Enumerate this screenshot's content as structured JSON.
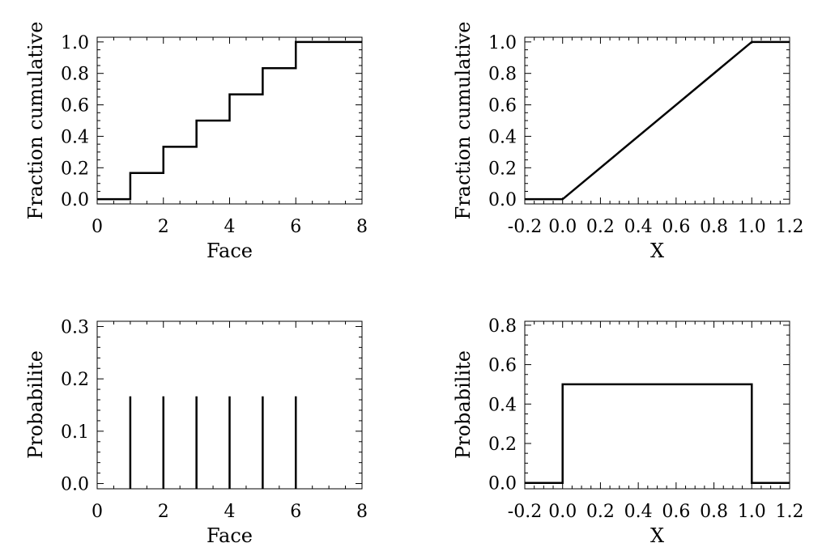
{
  "chart_data": [
    {
      "type": "line",
      "step": true,
      "xlabel": "Face",
      "ylabel": "Fraction cumulative",
      "xlim": [
        0,
        8
      ],
      "ylim": [
        -0.03,
        1.03
      ],
      "x_ticks": [
        0,
        2,
        4,
        6,
        8
      ],
      "x_tick_labels": [
        "0",
        "2",
        "4",
        "6",
        "8"
      ],
      "x_minor_step": 0.5,
      "y_ticks": [
        0.0,
        0.2,
        0.4,
        0.6,
        0.8,
        1.0
      ],
      "y_tick_labels": [
        "0.0",
        "0.2",
        "0.4",
        "0.6",
        "0.8",
        "1.0"
      ],
      "y_minor_step": 0.05,
      "series": [
        {
          "x": [
            0,
            1,
            1,
            2,
            2,
            3,
            3,
            4,
            4,
            5,
            5,
            6,
            6,
            8
          ],
          "y": [
            0,
            0,
            0.1667,
            0.1667,
            0.3333,
            0.3333,
            0.5,
            0.5,
            0.6667,
            0.6667,
            0.8333,
            0.8333,
            1.0,
            1.0
          ]
        }
      ]
    },
    {
      "type": "line",
      "xlabel": "X",
      "ylabel": "Fraction cumulative",
      "xlim": [
        -0.2,
        1.2
      ],
      "ylim": [
        -0.03,
        1.03
      ],
      "x_ticks": [
        -0.2,
        0.0,
        0.2,
        0.4,
        0.6,
        0.8,
        1.0,
        1.2
      ],
      "x_tick_labels": [
        "-0.2",
        "0.0",
        "0.2",
        "0.4",
        "0.6",
        "0.8",
        "1.0",
        "1.2"
      ],
      "x_minor_step": 0.05,
      "y_ticks": [
        0.0,
        0.2,
        0.4,
        0.6,
        0.8,
        1.0
      ],
      "y_tick_labels": [
        "0.0",
        "0.2",
        "0.4",
        "0.6",
        "0.8",
        "1.0"
      ],
      "y_minor_step": 0.05,
      "series": [
        {
          "x": [
            -0.2,
            0.0,
            1.0,
            1.2
          ],
          "y": [
            0.0,
            0.0,
            1.0,
            1.0
          ]
        }
      ]
    },
    {
      "type": "bar",
      "style": "stem",
      "xlabel": "Face",
      "ylabel": "Probabilite",
      "xlim": [
        0,
        8
      ],
      "ylim": [
        -0.01,
        0.31
      ],
      "x_ticks": [
        0,
        2,
        4,
        6,
        8
      ],
      "x_tick_labels": [
        "0",
        "2",
        "4",
        "6",
        "8"
      ],
      "x_minor_step": 0.5,
      "y_ticks": [
        0.0,
        0.1,
        0.2,
        0.3
      ],
      "y_tick_labels": [
        "0.0",
        "0.1",
        "0.2",
        "0.3"
      ],
      "y_minor_step": 0.02,
      "series": [
        {
          "x": [
            1,
            2,
            3,
            4,
            5,
            6
          ],
          "y": [
            0.1667,
            0.1667,
            0.1667,
            0.1667,
            0.1667,
            0.1667
          ]
        }
      ]
    },
    {
      "type": "line",
      "xlabel": "X",
      "ylabel": "Probabilite",
      "xlim": [
        -0.2,
        1.2
      ],
      "ylim": [
        -0.03,
        0.82
      ],
      "x_ticks": [
        -0.2,
        0.0,
        0.2,
        0.4,
        0.6,
        0.8,
        1.0,
        1.2
      ],
      "x_tick_labels": [
        "-0.2",
        "0.0",
        "0.2",
        "0.4",
        "0.6",
        "0.8",
        "1.0",
        "1.2"
      ],
      "x_minor_step": 0.05,
      "y_ticks": [
        0.0,
        0.2,
        0.4,
        0.6,
        0.8
      ],
      "y_tick_labels": [
        "0.0",
        "0.2",
        "0.4",
        "0.6",
        "0.8"
      ],
      "y_minor_step": 0.05,
      "series": [
        {
          "x": [
            -0.2,
            0.0,
            0.0,
            1.0,
            1.0,
            1.2
          ],
          "y": [
            0.0,
            0.0,
            0.5,
            0.5,
            0.0,
            0.0
          ]
        }
      ]
    }
  ]
}
